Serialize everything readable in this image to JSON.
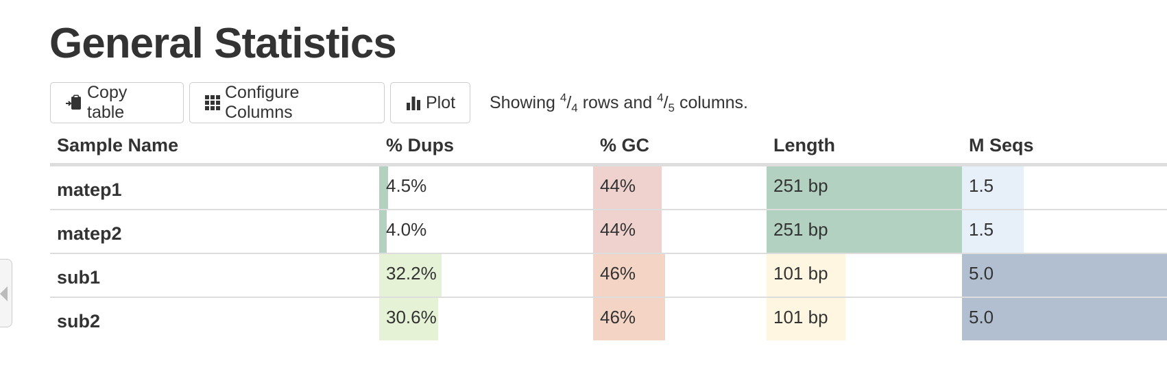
{
  "page": {
    "title": "General Statistics"
  },
  "toolbar": {
    "copy_label": "Copy table",
    "configure_label": "Configure Columns",
    "plot_label": "Plot",
    "status": {
      "prefix": "Showing",
      "rows_shown": "4",
      "rows_total": "4",
      "middle": "rows and",
      "cols_shown": "4",
      "cols_total": "5",
      "suffix": "columns."
    }
  },
  "table": {
    "headers": {
      "sample": "Sample Name",
      "dups": "% Dups",
      "gc": "% GC",
      "length": "Length",
      "mseqs": "M Seqs"
    },
    "rows": [
      {
        "name": "matep1",
        "dups": {
          "text": "4.5%",
          "fill": 0.045,
          "color": "#b2d1c0"
        },
        "gc": {
          "text": "44%",
          "fill": 0.44,
          "color": "#efd2ce"
        },
        "length": {
          "text": "251 bp",
          "fill": 1.0,
          "color": "#b3d1c1"
        },
        "mseqs": {
          "text": "1.5",
          "fill": 0.3,
          "color": "#e7f0f9"
        }
      },
      {
        "name": "matep2",
        "dups": {
          "text": "4.0%",
          "fill": 0.04,
          "color": "#b2d1c0"
        },
        "gc": {
          "text": "44%",
          "fill": 0.44,
          "color": "#efd2ce"
        },
        "length": {
          "text": "251 bp",
          "fill": 1.0,
          "color": "#b3d1c1"
        },
        "mseqs": {
          "text": "1.5",
          "fill": 0.3,
          "color": "#e7f0f9"
        }
      },
      {
        "name": "sub1",
        "dups": {
          "text": "32.2%",
          "fill": 0.322,
          "color": "#e5f2d6"
        },
        "gc": {
          "text": "46%",
          "fill": 0.46,
          "color": "#f4d4c4"
        },
        "length": {
          "text": "101 bp",
          "fill": 0.402,
          "color": "#fef6e0"
        },
        "mseqs": {
          "text": "5.0",
          "fill": 1.0,
          "color": "#b2bfd1"
        }
      },
      {
        "name": "sub2",
        "dups": {
          "text": "30.6%",
          "fill": 0.306,
          "color": "#e5f2d6"
        },
        "gc": {
          "text": "46%",
          "fill": 0.46,
          "color": "#f4d4c4"
        },
        "length": {
          "text": "101 bp",
          "fill": 0.402,
          "color": "#fef6e0"
        },
        "mseqs": {
          "text": "5.0",
          "fill": 1.0,
          "color": "#b2bfd1"
        }
      }
    ]
  },
  "icons": {
    "copy": "clipboard-icon",
    "configure": "grid-icon",
    "plot": "bar-chart-icon",
    "side_toggle": "caret-left-icon"
  }
}
